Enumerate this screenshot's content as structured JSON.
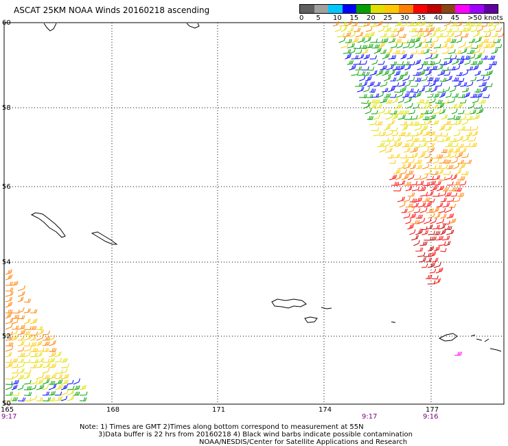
{
  "title": "ASCAT 25KM NOAA Winds 20160218 ascending",
  "scale": {
    "labels": [
      "0",
      "5",
      "10",
      "15",
      "20",
      "25",
      "30",
      "35",
      "40",
      "45",
      ">50 knots"
    ],
    "colors": [
      "#606060",
      "#a0a0a0",
      "#00c8ff",
      "#0000ff",
      "#00a000",
      "#e0e000",
      "#ffc800",
      "#ff8000",
      "#ff0000",
      "#c00000",
      "#8b4513",
      "#ff00ff",
      "#a000ff",
      "#6000a0"
    ]
  },
  "lat_labels": [
    "60",
    "58",
    "56",
    "54",
    "52",
    "50"
  ],
  "lon_labels": [
    "165",
    "168",
    "171",
    "174",
    "177"
  ],
  "times": [
    "9:17",
    "9:17",
    "9:16"
  ],
  "notes": {
    "line1": "Note: 1) Times are GMT 2)Times along bottom correspond to measurement at 55N",
    "line2": "3)Data buffer is 22 hrs from 20160218 4) Black wind barbs indicate possible contamination",
    "line3": "NOAA/NESDIS/Center for Satellite Applications and Research"
  }
}
